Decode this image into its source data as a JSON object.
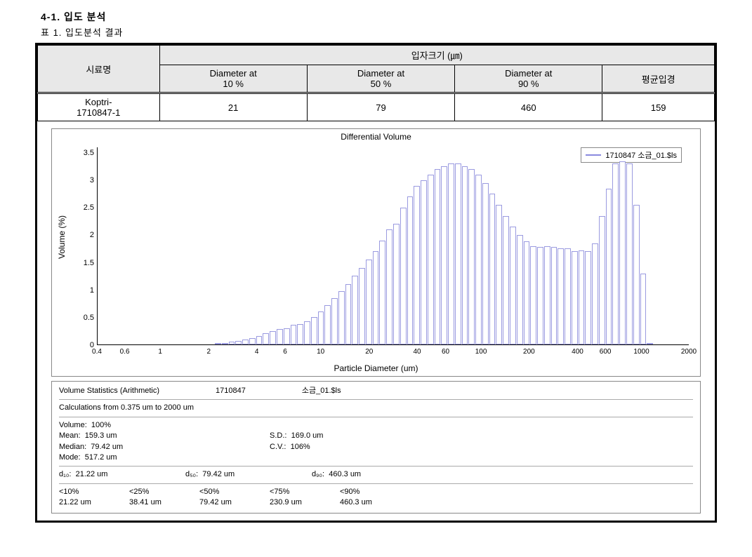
{
  "headings": {
    "section": "4-1. 입도 분석",
    "caption": "표 1. 입도분석 결과"
  },
  "table": {
    "col_sample": "시료명",
    "col_size_header": "입자크기 (㎛)",
    "col_d10": "Diameter at\n10 %",
    "col_d50": "Diameter at\n50 %",
    "col_d90": "Diameter at\n90 %",
    "col_mean": "평균입경",
    "row": {
      "sample": "Koptri-\n1710847-1",
      "d10": "21",
      "d50": "79",
      "d90": "460",
      "mean": "159"
    }
  },
  "chart": {
    "title": "Differential Volume",
    "legend": "1710847     소금_01.$ls",
    "ylabel": "Volume (%)",
    "xlabel": "Particle Diameter (um)",
    "ymax": 3.6,
    "yticks": [
      "0",
      "0.5",
      "1",
      "1.5",
      "2",
      "2.5",
      "3",
      "3.5"
    ],
    "xticks": [
      {
        "label": "0.4",
        "pos": 0
      },
      {
        "label": "0.6",
        "pos": 4.7
      },
      {
        "label": "1",
        "pos": 10.7
      },
      {
        "label": "2",
        "pos": 18.9
      },
      {
        "label": "4",
        "pos": 27.0
      },
      {
        "label": "6",
        "pos": 31.8
      },
      {
        "label": "10",
        "pos": 37.8
      },
      {
        "label": "20",
        "pos": 46.0
      },
      {
        "label": "40",
        "pos": 54.1
      },
      {
        "label": "60",
        "pos": 58.9
      },
      {
        "label": "100",
        "pos": 64.9
      },
      {
        "label": "200",
        "pos": 73.0
      },
      {
        "label": "400",
        "pos": 81.2
      },
      {
        "label": "600",
        "pos": 85.9
      },
      {
        "label": "1000",
        "pos": 92.0
      },
      {
        "label": "2000",
        "pos": 100
      }
    ],
    "bar_color": "#9a9ae0",
    "bg_color": "#ffffff",
    "values": [
      0,
      0,
      0,
      0,
      0,
      0,
      0,
      0,
      0,
      0,
      0,
      0,
      0,
      0,
      0,
      0,
      0,
      0,
      0,
      0,
      0,
      0.02,
      0.03,
      0.05,
      0.07,
      0.09,
      0.12,
      0.15,
      0.2,
      0.25,
      0.28,
      0.3,
      0.36,
      0.37,
      0.42,
      0.5,
      0.6,
      0.72,
      0.85,
      0.98,
      1.1,
      1.25,
      1.4,
      1.55,
      1.7,
      1.9,
      2.1,
      2.2,
      2.5,
      2.7,
      2.9,
      3.0,
      3.1,
      3.2,
      3.25,
      3.3,
      3.3,
      3.25,
      3.2,
      3.1,
      2.95,
      2.75,
      2.55,
      2.35,
      2.15,
      2.0,
      1.88,
      1.8,
      1.78,
      1.8,
      1.78,
      1.76,
      1.75,
      1.7,
      1.72,
      1.7,
      1.85,
      2.35,
      2.85,
      3.3,
      3.35,
      3.3,
      2.55,
      1.3,
      0.02,
      0,
      0,
      0,
      0,
      0,
      0
    ]
  },
  "stats": {
    "header_l": "Volume Statistics (Arithmetic)",
    "header_m": "1710847",
    "header_r": "소금_01.$ls",
    "calc_range": "Calculations from 0.375 um to 2000 um",
    "volume_l": "Volume:",
    "volume_v": "100%",
    "mean_l": "Mean:",
    "mean_v": "159.3 um",
    "sd_l": "S.D.:",
    "sd_v": "169.0 um",
    "median_l": "Median:",
    "median_v": "79.42 um",
    "cv_l": "C.V.:",
    "cv_v": "106%",
    "mode_l": "Mode:",
    "mode_v": "517.2 um",
    "d10_l": "d₁₀:",
    "d10_v": "21.22 um",
    "d50_l": "d₅₀:",
    "d50_v": "79.42 um",
    "d90_l": "d₉₀:",
    "d90_v": "460.3 um",
    "pct_h": [
      "<10%",
      "<25%",
      "<50%",
      "<75%",
      "<90%"
    ],
    "pct_v": [
      "21.22 um",
      "38.41 um",
      "79.42 um",
      "230.9 um",
      "460.3 um"
    ]
  }
}
